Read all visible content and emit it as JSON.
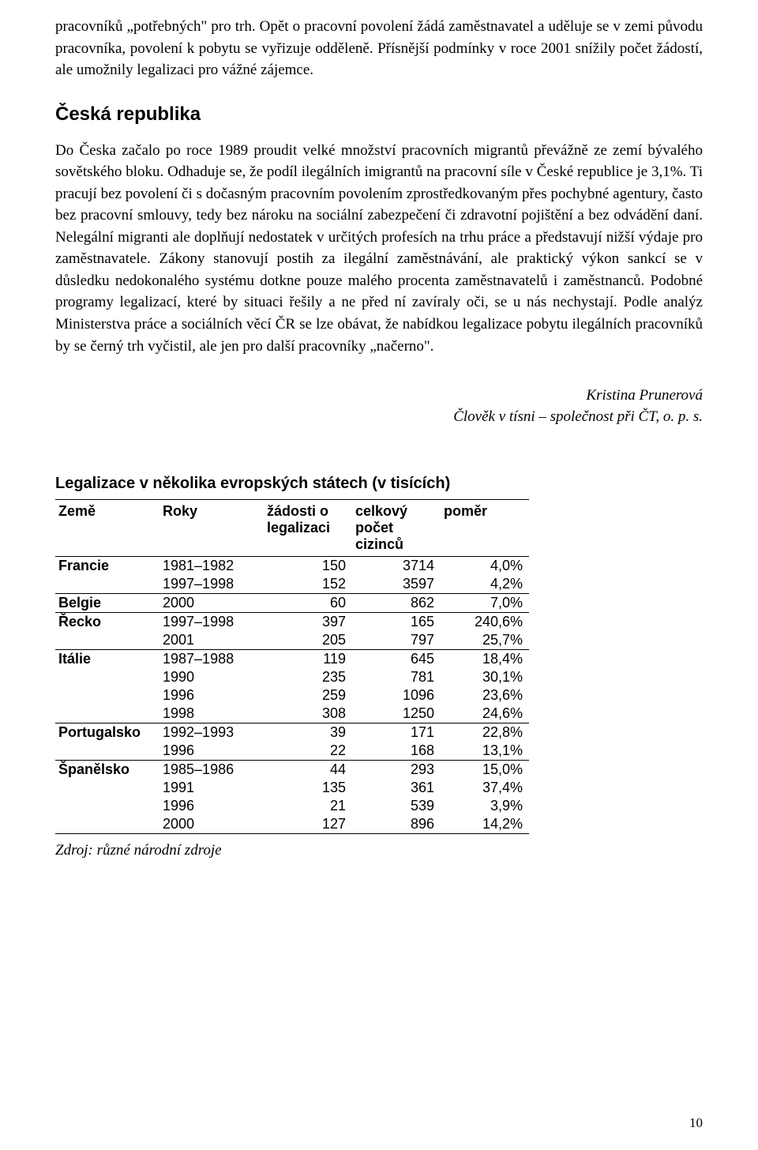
{
  "paragraphs": {
    "p1": "pracovníků „potřebných\" pro trh. Opět o pracovní povolení žádá zaměstnavatel a uděluje se v zemi původu pracovníka, povolení k pobytu se vyřizuje odděleně. Přísnější podmínky v roce 2001 snížily počet žádostí, ale umožnily legalizaci pro vážné zájemce.",
    "heading": "Česká republika",
    "p2": "Do Česka začalo po roce 1989 proudit velké množství pracovních migrantů převážně ze zemí bývalého sovětského bloku. Odhaduje se, že podíl ilegálních imigrantů na pracovní síle v České republice je 3,1%. Ti pracují bez povolení či s dočasným pracovním povolením zprostředkovaným přes pochybné agentury, často bez pracovní smlouvy, tedy bez nároku na sociální zabezpečení či zdravotní pojištění a bez odvádění daní. Nelegální migranti ale doplňují nedostatek v určitých profesích na trhu práce a představují nižší výdaje pro zaměstnavatele. Zákony stanovují postih za ilegální zaměstnávání, ale praktický výkon sankcí se v důsledku nedokonalého systému dotkne pouze malého procenta zaměstnavatelů i zaměstnanců. Podobné programy legalizací, které by situaci řešily a ne před ní zavíraly oči, se u nás nechystají. Podle analýz Ministerstva práce a sociálních věcí ČR se lze obávat, že nabídkou legalizace pobytu ilegálních pracovníků by se černý trh vyčistil, ale jen pro další pracovníky „načerno\"."
  },
  "author": {
    "name": "Kristina Prunerová",
    "affiliation": "Člověk v tísni – společnost při ČT, o. p. s."
  },
  "table": {
    "title": "Legalizace v několika evropských státech (v tisících)",
    "headers": {
      "country": "Země",
      "years": "Roky",
      "apps_l1": "žádosti o",
      "apps_l2": "legalizaci",
      "total_l1": "celkový",
      "total_l2": "počet",
      "total_l3": "cizinců",
      "ratio": "poměr"
    },
    "groups": [
      {
        "country": "Francie",
        "rows": [
          {
            "years": "1981–1982",
            "apps": "150",
            "total": "3714",
            "ratio": "4,0%"
          },
          {
            "years": "1997–1998",
            "apps": "152",
            "total": "3597",
            "ratio": "4,2%"
          }
        ]
      },
      {
        "country": "Belgie",
        "rows": [
          {
            "years": "2000",
            "apps": "60",
            "total": "862",
            "ratio": "7,0%"
          }
        ]
      },
      {
        "country": "Řecko",
        "rows": [
          {
            "years": "1997–1998",
            "apps": "397",
            "total": "165",
            "ratio": "240,6%"
          },
          {
            "years": "2001",
            "apps": "205",
            "total": "797",
            "ratio": "25,7%"
          }
        ]
      },
      {
        "country": "Itálie",
        "rows": [
          {
            "years": "1987–1988",
            "apps": "119",
            "total": "645",
            "ratio": "18,4%"
          },
          {
            "years": "1990",
            "apps": "235",
            "total": "781",
            "ratio": "30,1%"
          },
          {
            "years": "1996",
            "apps": "259",
            "total": "1096",
            "ratio": "23,6%"
          },
          {
            "years": "1998",
            "apps": "308",
            "total": "1250",
            "ratio": "24,6%"
          }
        ]
      },
      {
        "country": "Portugalsko",
        "rows": [
          {
            "years": "1992–1993",
            "apps": "39",
            "total": "171",
            "ratio": "22,8%"
          },
          {
            "years": "1996",
            "apps": "22",
            "total": "168",
            "ratio": "13,1%"
          }
        ]
      },
      {
        "country": "Španělsko",
        "rows": [
          {
            "years": "1985–1986",
            "apps": "44",
            "total": "293",
            "ratio": "15,0%"
          },
          {
            "years": "1991",
            "apps": "135",
            "total": "361",
            "ratio": "37,4%"
          },
          {
            "years": "1996",
            "apps": "21",
            "total": "539",
            "ratio": "3,9%"
          },
          {
            "years": "2000",
            "apps": "127",
            "total": "896",
            "ratio": "14,2%"
          }
        ]
      }
    ],
    "source": "Zdroj: různé národní zdroje"
  },
  "page_number": "10"
}
